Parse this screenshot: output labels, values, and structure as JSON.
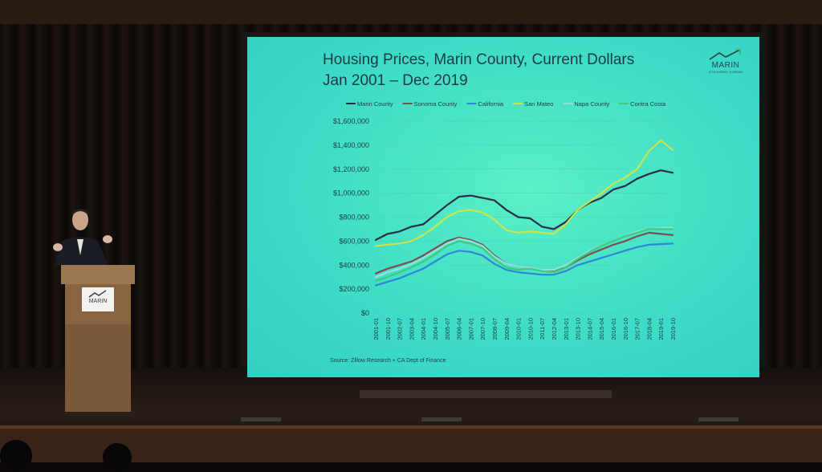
{
  "slide": {
    "title_line1": "Housing Prices, Marin County, Current Dollars",
    "title_line2": "Jan 2001 – Dec 2019",
    "logo_text": "MARIN",
    "logo_sub": "ECONOMIC FORUM",
    "source": "Source: Zillow Research + CA Dept of Finance"
  },
  "podium": {
    "sign_text": "MARIN"
  },
  "colors": {
    "screen_bg": "#42e0c4",
    "text": "#1f3a44",
    "grid": "#4fcfb8"
  },
  "chart_data": {
    "type": "line",
    "title": "Housing Prices, Marin County, Current Dollars Jan 2001 – Dec 2019",
    "ylim": [
      0,
      1600000
    ],
    "y_ticks": [
      "$0",
      "$200,000",
      "$400,000",
      "$600,000",
      "$800,000",
      "$1,000,000",
      "$1,200,000",
      "$1,400,000",
      "$1,600,000"
    ],
    "x_ticks": [
      "2001-01",
      "2001-10",
      "2002-07",
      "2003-04",
      "2004-01",
      "2004-10",
      "2005-07",
      "2006-04",
      "2007-01",
      "2007-10",
      "2008-07",
      "2009-04",
      "2010-01",
      "2010-10",
      "2011-07",
      "2012-04",
      "2013-01",
      "2013-10",
      "2014-07",
      "2015-04",
      "2016-01",
      "2016-10",
      "2017-07",
      "2018-04",
      "2019-01",
      "2019-10"
    ],
    "grid": "horizontal",
    "legend_position": "top",
    "series": [
      {
        "name": "Marin County",
        "color": "#2a2e45",
        "values": [
          610000,
          660000,
          680000,
          720000,
          740000,
          820000,
          900000,
          970000,
          980000,
          960000,
          940000,
          860000,
          800000,
          790000,
          720000,
          700000,
          760000,
          860000,
          920000,
          960000,
          1030000,
          1060000,
          1120000,
          1160000,
          1190000,
          1170000
        ]
      },
      {
        "name": "Sonoma County",
        "color": "#7a4f4f",
        "values": [
          330000,
          370000,
          400000,
          430000,
          480000,
          540000,
          600000,
          630000,
          610000,
          570000,
          480000,
          410000,
          390000,
          380000,
          360000,
          350000,
          380000,
          440000,
          490000,
          530000,
          570000,
          600000,
          640000,
          670000,
          660000,
          650000
        ]
      },
      {
        "name": "California",
        "color": "#2d86d6",
        "values": [
          230000,
          260000,
          290000,
          330000,
          370000,
          430000,
          490000,
          520000,
          510000,
          480000,
          410000,
          360000,
          340000,
          330000,
          320000,
          320000,
          350000,
          400000,
          430000,
          460000,
          490000,
          520000,
          550000,
          570000,
          575000,
          580000
        ]
      },
      {
        "name": "San Mateo",
        "color": "#c6e64a",
        "values": [
          560000,
          570000,
          580000,
          600000,
          650000,
          720000,
          800000,
          850000,
          860000,
          840000,
          780000,
          690000,
          670000,
          680000,
          670000,
          660000,
          740000,
          860000,
          930000,
          1000000,
          1080000,
          1130000,
          1200000,
          1350000,
          1440000,
          1360000
        ]
      },
      {
        "name": "Napa County",
        "color": "#8ee2e0",
        "values": [
          300000,
          340000,
          370000,
          410000,
          460000,
          520000,
          580000,
          620000,
          600000,
          560000,
          470000,
          410000,
          390000,
          380000,
          360000,
          360000,
          400000,
          460000,
          520000,
          560000,
          600000,
          640000,
          680000,
          700000,
          710000,
          710000
        ]
      },
      {
        "name": "Contra Costa",
        "color": "#41c87c",
        "values": [
          270000,
          300000,
          340000,
          380000,
          430000,
          490000,
          560000,
          600000,
          580000,
          540000,
          450000,
          380000,
          360000,
          370000,
          350000,
          340000,
          380000,
          450000,
          510000,
          560000,
          600000,
          640000,
          670000,
          700000,
          700000,
          700000
        ]
      }
    ]
  }
}
